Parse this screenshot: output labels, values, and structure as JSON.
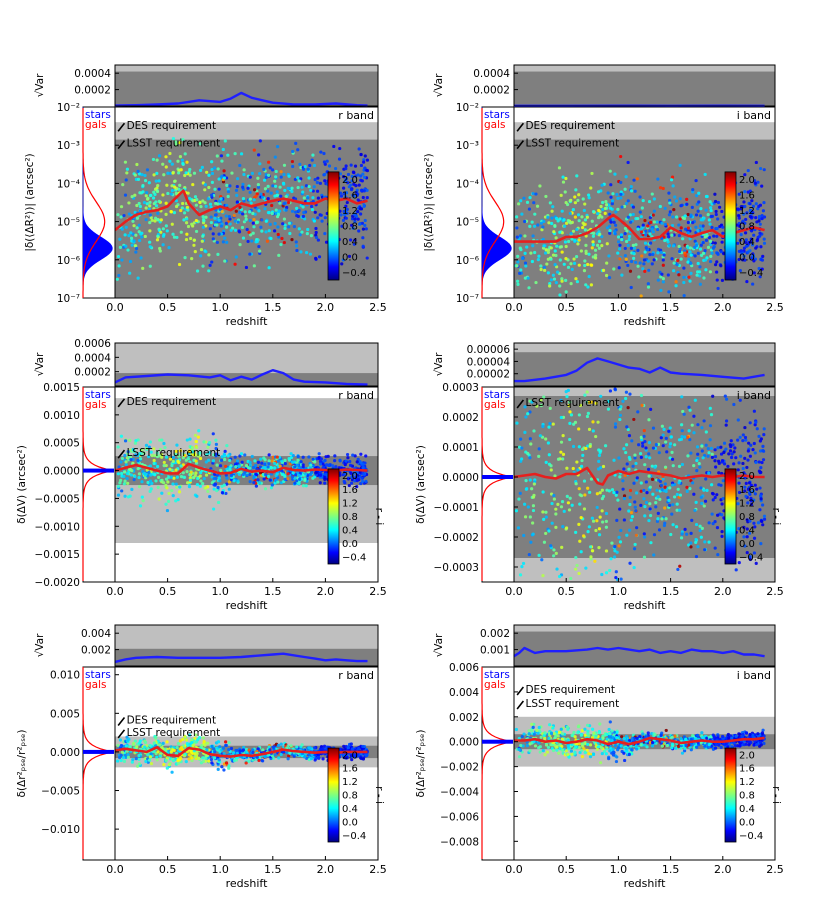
{
  "figure": {
    "xlabel": "redshift",
    "colorbar_label": "r - i",
    "colorbar_ticks": [
      "2.0",
      "1.6",
      "1.2",
      "0.8",
      "0.4",
      "0.0",
      "−0.4"
    ],
    "legend": [
      {
        "name": "stars",
        "color": "#0000ff"
      },
      {
        "name": "gals",
        "color": "#ff0000"
      }
    ],
    "colors": {
      "outer_band": "#bfbfbf",
      "inner_band": "#7f7f7f",
      "mean_line": "#e6201e",
      "var_line": "#1f1fff"
    },
    "top_ylabel": "√Var"
  },
  "chart_data": [
    {
      "id": "p1",
      "type": "scatter",
      "band_label": "r band",
      "scale": "log",
      "ylabel": "|δ(⟨ΔR²⟩)| (arcsec²)",
      "xlim": [
        -0.3,
        2.5
      ],
      "ylim": [
        1e-07,
        0.01
      ],
      "xticks": [
        "0.0",
        "0.5",
        "1.0",
        "1.5",
        "2.0",
        "2.5"
      ],
      "yticks": [
        {
          "v": 1e-07,
          "label": "10⁻⁷"
        },
        {
          "v": 1e-06,
          "label": "10⁻⁶"
        },
        {
          "v": 1e-05,
          "label": "10⁻⁵"
        },
        {
          "v": 0.0001,
          "label": "10⁻⁴"
        },
        {
          "v": 0.001,
          "label": "10⁻³"
        },
        {
          "v": 0.01,
          "label": "10⁻²"
        }
      ],
      "requirements": [
        {
          "label": "DES requirement",
          "value": 0.004
        },
        {
          "label": "LSST requirement",
          "value": 0.0014
        }
      ],
      "mean_line": {
        "x": [
          0.0,
          0.1,
          0.2,
          0.3,
          0.4,
          0.5,
          0.55,
          0.65,
          0.7,
          0.8,
          0.9,
          1.0,
          1.1,
          1.2,
          1.3,
          1.4,
          1.5,
          1.6,
          1.7,
          1.8,
          1.9,
          2.0,
          2.1,
          2.2,
          2.3,
          2.4
        ],
        "y": [
          6e-06,
          1e-05,
          1.5e-05,
          1.8e-05,
          2e-05,
          2.5e-05,
          3.5e-05,
          6.5e-05,
          3e-05,
          1.5e-05,
          2e-05,
          2.5e-05,
          2e-05,
          3e-05,
          2.5e-05,
          3e-05,
          3.5e-05,
          4e-05,
          3.5e-05,
          3e-05,
          3e-05,
          4e-05,
          3.5e-05,
          4e-05,
          3e-05,
          3.5e-05
        ]
      },
      "top": {
        "ylim": [
          0,
          0.0005
        ],
        "yticks": [
          {
            "v": 0.0002,
            "label": "0.0002"
          },
          {
            "v": 0.0004,
            "label": "0.0004"
          }
        ],
        "bands": [
          0.00042,
          0.0005
        ],
        "line_x": [
          0.0,
          0.2,
          0.4,
          0.6,
          0.8,
          1.0,
          1.1,
          1.2,
          1.3,
          1.4,
          1.5,
          1.7,
          1.9,
          2.1,
          2.3,
          2.4
        ],
        "line_y": [
          5e-06,
          1e-05,
          2e-05,
          3e-05,
          7e-05,
          5e-05,
          9e-05,
          0.00016,
          0.0001,
          7e-05,
          4e-05,
          2e-05,
          2e-05,
          3e-05,
          1e-05,
          5e-06
        ]
      },
      "seed": 11
    },
    {
      "id": "p2",
      "type": "scatter",
      "band_label": "i band",
      "scale": "log",
      "ylabel": "|δ(⟨ΔR²⟩)| (arcsec²)",
      "xlim": [
        -0.3,
        2.5
      ],
      "ylim": [
        1e-07,
        0.01
      ],
      "xticks": [
        "0.0",
        "0.5",
        "1.0",
        "1.5",
        "2.0",
        "2.5"
      ],
      "yticks": [
        {
          "v": 1e-07,
          "label": "10⁻⁷"
        },
        {
          "v": 1e-06,
          "label": "10⁻⁶"
        },
        {
          "v": 1e-05,
          "label": "10⁻⁵"
        },
        {
          "v": 0.0001,
          "label": "10⁻⁴"
        },
        {
          "v": 0.001,
          "label": "10⁻³"
        },
        {
          "v": 0.01,
          "label": "10⁻²"
        }
      ],
      "requirements": [
        {
          "label": "DES requirement",
          "value": 0.004
        },
        {
          "label": "LSST requirement",
          "value": 0.0014
        }
      ],
      "mean_line": {
        "x": [
          0.0,
          0.1,
          0.2,
          0.3,
          0.4,
          0.5,
          0.6,
          0.7,
          0.8,
          0.9,
          0.95,
          1.0,
          1.1,
          1.2,
          1.3,
          1.4,
          1.5,
          1.6,
          1.7,
          1.8,
          1.9,
          2.0,
          2.1,
          2.2,
          2.3,
          2.4
        ],
        "y": [
          3e-06,
          3e-06,
          3e-06,
          3e-06,
          3e-06,
          4e-06,
          4e-06,
          5e-06,
          7e-06,
          1.2e-05,
          1.5e-05,
          1.2e-05,
          7e-06,
          3.5e-06,
          3.5e-06,
          4e-06,
          7e-06,
          5e-06,
          4e-06,
          5e-06,
          6e-06,
          4e-06,
          5e-06,
          6e-06,
          7e-06,
          6e-06
        ]
      },
      "top": {
        "ylim": [
          0,
          0.0005
        ],
        "yticks": [
          {
            "v": 0.0002,
            "label": "0.0002"
          },
          {
            "v": 0.0004,
            "label": "0.0004"
          }
        ],
        "bands": [
          0.00042,
          0.0005
        ],
        "line_x": [
          0.0,
          0.5,
          1.0,
          1.5,
          2.0,
          2.4
        ],
        "line_y": [
          3e-06,
          3e-06,
          4e-06,
          3e-06,
          4e-06,
          3e-06
        ]
      },
      "seed": 23
    },
    {
      "id": "p3",
      "type": "scatter",
      "band_label": "r band",
      "scale": "linear",
      "ylabel": "δ(ΔV) (arcsec²)",
      "xlim": [
        -0.3,
        2.5
      ],
      "ylim": [
        -0.002,
        0.0015
      ],
      "xticks": [
        "0.0",
        "0.5",
        "1.0",
        "1.5",
        "2.0",
        "2.5"
      ],
      "yticks": [
        {
          "v": -0.002,
          "label": "−0.0020"
        },
        {
          "v": -0.0015,
          "label": "−0.0015"
        },
        {
          "v": -0.001,
          "label": "−0.0010"
        },
        {
          "v": -0.0005,
          "label": "−0.0005"
        },
        {
          "v": 0,
          "label": "0.0000"
        },
        {
          "v": 0.0005,
          "label": "0.0005"
        },
        {
          "v": 0.001,
          "label": "0.0010"
        },
        {
          "v": 0.0015,
          "label": "0.0015"
        }
      ],
      "requirements": [
        {
          "label": "DES requirement",
          "value": 0.0013
        },
        {
          "label": "LSST requirement",
          "value": 0.00026
        }
      ],
      "mean_line": {
        "x": [
          0.0,
          0.1,
          0.2,
          0.3,
          0.4,
          0.5,
          0.6,
          0.7,
          0.8,
          0.9,
          1.0,
          1.1,
          1.2,
          1.3,
          1.4,
          1.5,
          1.6,
          1.7,
          1.8,
          1.9,
          2.0,
          2.1,
          2.2,
          2.3,
          2.4
        ],
        "y": [
          0,
          5e-05,
          0.0001,
          5e-05,
          0,
          -5e-05,
          -5e-05,
          0.00012,
          5e-05,
          0,
          -5e-05,
          -4e-05,
          3e-05,
          -2e-05,
          0,
          -3e-05,
          5e-05,
          1e-05,
          0,
          2e-05,
          1e-05,
          0,
          2e-05,
          1e-05,
          0
        ]
      },
      "top": {
        "ylim": [
          0,
          0.0006
        ],
        "yticks": [
          {
            "v": 0.0002,
            "label": "0.0002"
          },
          {
            "v": 0.0004,
            "label": "0.0004"
          },
          {
            "v": 0.0006,
            "label": "0.0006"
          }
        ],
        "bands": [
          0.00018,
          0.0006
        ],
        "line_x": [
          0.0,
          0.1,
          0.3,
          0.5,
          0.7,
          0.9,
          1.0,
          1.1,
          1.2,
          1.3,
          1.4,
          1.5,
          1.6,
          1.7,
          1.8,
          2.0,
          2.2,
          2.4
        ],
        "line_y": [
          5e-05,
          0.00012,
          0.00014,
          0.00016,
          0.00015,
          0.00012,
          0.00015,
          8e-05,
          0.00013,
          9e-05,
          0.00016,
          0.00022,
          0.00018,
          9e-05,
          6e-05,
          5e-05,
          3e-05,
          2e-05
        ]
      },
      "seed": 37
    },
    {
      "id": "p4",
      "type": "scatter",
      "band_label": "i band",
      "scale": "linear",
      "ylabel": "δ(ΔV) (arcsec²)",
      "xlim": [
        -0.3,
        2.5
      ],
      "ylim": [
        -0.00035,
        0.0003
      ],
      "xticks": [
        "0.0",
        "0.5",
        "1.0",
        "1.5",
        "2.0",
        "2.5"
      ],
      "yticks": [
        {
          "v": -0.0003,
          "label": "−0.0003"
        },
        {
          "v": -0.0002,
          "label": "−0.0002"
        },
        {
          "v": -0.0001,
          "label": "−0.0001"
        },
        {
          "v": 0,
          "label": "0.0000"
        },
        {
          "v": 0.0001,
          "label": "0.0001"
        },
        {
          "v": 0.0002,
          "label": "0.0002"
        },
        {
          "v": 0.0003,
          "label": "0.0003"
        }
      ],
      "requirements": [
        {
          "label": "LSST requirement",
          "value": 0.00027
        }
      ],
      "mean_line": {
        "x": [
          0.0,
          0.1,
          0.2,
          0.3,
          0.4,
          0.5,
          0.6,
          0.7,
          0.8,
          0.85,
          0.9,
          1.0,
          1.1,
          1.2,
          1.3,
          1.4,
          1.5,
          1.6,
          1.7,
          1.8,
          1.9,
          2.0,
          2.1,
          2.2,
          2.3,
          2.4
        ],
        "y": [
          0,
          5e-06,
          1e-05,
          0,
          -5e-06,
          1e-05,
          1e-05,
          3e-05,
          -2e-05,
          -2.5e-05,
          5e-06,
          2e-05,
          1e-05,
          2e-05,
          1.5e-05,
          1e-05,
          5e-06,
          -5e-06,
          0,
          5e-06,
          0,
          5e-06,
          0,
          5e-06,
          0,
          0
        ]
      },
      "top": {
        "ylim": [
          0,
          7e-05
        ],
        "yticks": [
          {
            "v": 2e-05,
            "label": "0.00002"
          },
          {
            "v": 4e-05,
            "label": "0.00004"
          },
          {
            "v": 6e-05,
            "label": "0.00006"
          }
        ],
        "bands": [
          5.5e-05,
          7e-05
        ],
        "line_x": [
          0.0,
          0.1,
          0.3,
          0.5,
          0.6,
          0.7,
          0.8,
          0.9,
          1.0,
          1.1,
          1.2,
          1.3,
          1.4,
          1.5,
          1.6,
          1.8,
          2.0,
          2.2,
          2.4
        ],
        "line_y": [
          8e-06,
          8e-06,
          1.2e-05,
          1.8e-05,
          2.5e-05,
          3.8e-05,
          4.5e-05,
          4e-05,
          3.5e-05,
          3e-05,
          2.8e-05,
          2.2e-05,
          3e-05,
          2.2e-05,
          2e-05,
          1.8e-05,
          1.5e-05,
          1.2e-05,
          1.8e-05
        ]
      },
      "seed": 53
    },
    {
      "id": "p5",
      "type": "scatter",
      "band_label": "r band",
      "scale": "linear",
      "ylabel": "δ(Δr²ₚₛₑ/r²ₚₛₑ)",
      "xlim": [
        -0.3,
        2.5
      ],
      "ylim": [
        -0.014,
        0.011
      ],
      "xticks": [
        "0.0",
        "0.5",
        "1.0",
        "1.5",
        "2.0",
        "2.5"
      ],
      "yticks": [
        {
          "v": -0.01,
          "label": "−0.010"
        },
        {
          "v": -0.005,
          "label": "−0.005"
        },
        {
          "v": 0,
          "label": "0.000"
        },
        {
          "v": 0.005,
          "label": "0.005"
        },
        {
          "v": 0.01,
          "label": "0.010"
        }
      ],
      "requirements": [
        {
          "label": "DES requirement",
          "value": 0.002
        },
        {
          "label": "LSST requirement",
          "value": 0.0008
        }
      ],
      "mean_line": {
        "x": [
          0.0,
          0.1,
          0.2,
          0.3,
          0.4,
          0.5,
          0.6,
          0.7,
          0.8,
          0.9,
          1.0,
          1.1,
          1.2,
          1.3,
          1.4,
          1.5,
          1.6,
          1.7,
          1.8,
          1.9,
          2.0,
          2.1,
          2.2,
          2.3,
          2.4
        ],
        "y": [
          0.0002,
          0.0004,
          0.0002,
          0,
          0.0006,
          -0.0004,
          -0.0005,
          0.0005,
          0.0003,
          -0.0003,
          -0.0005,
          -0.0006,
          -0.0004,
          -0.0005,
          -0.0003,
          0,
          0.0003,
          0.0001,
          0,
          -0.0001,
          0,
          -0.0001,
          0,
          0,
          0
        ]
      },
      "top": {
        "ylim": [
          0,
          0.005
        ],
        "yticks": [
          {
            "v": 0.002,
            "label": "0.002"
          },
          {
            "v": 0.004,
            "label": "0.004"
          }
        ],
        "bands": [
          0.0021,
          0.005
        ],
        "line_x": [
          0.0,
          0.1,
          0.2,
          0.4,
          0.6,
          0.8,
          1.0,
          1.2,
          1.4,
          1.5,
          1.6,
          1.8,
          1.9,
          2.0,
          2.1,
          2.2,
          2.3,
          2.4
        ],
        "line_y": [
          0.0005,
          0.0008,
          0.001,
          0.0011,
          0.001,
          0.001,
          0.001,
          0.0011,
          0.0013,
          0.0014,
          0.0015,
          0.0011,
          0.0009,
          0.0007,
          0.0008,
          0.0007,
          0.0006,
          0.0006
        ]
      },
      "seed": 71
    },
    {
      "id": "p6",
      "type": "scatter",
      "band_label": "i band",
      "scale": "linear",
      "ylabel": "δ(Δr²ₚₛₑ/r²ₚₛₑ)",
      "xlim": [
        -0.3,
        2.5
      ],
      "ylim": [
        -0.0095,
        0.006
      ],
      "xticks": [
        "0.0",
        "0.5",
        "1.0",
        "1.5",
        "2.0",
        "2.5"
      ],
      "yticks": [
        {
          "v": -0.008,
          "label": "−0.008"
        },
        {
          "v": -0.006,
          "label": "−0.006"
        },
        {
          "v": -0.004,
          "label": "−0.004"
        },
        {
          "v": -0.002,
          "label": "−0.002"
        },
        {
          "v": 0,
          "label": "0.000"
        },
        {
          "v": 0.002,
          "label": "0.002"
        },
        {
          "v": 0.004,
          "label": "0.004"
        },
        {
          "v": 0.006,
          "label": "0.006"
        }
      ],
      "requirements": [
        {
          "label": "DES requirement",
          "value": 0.002
        },
        {
          "label": "LSST requirement",
          "value": 0.0006
        }
      ],
      "mean_line": {
        "x": [
          0.0,
          0.1,
          0.2,
          0.3,
          0.4,
          0.5,
          0.6,
          0.7,
          0.8,
          0.9,
          1.0,
          1.1,
          1.2,
          1.3,
          1.4,
          1.5,
          1.6,
          1.7,
          1.8,
          1.9,
          2.0,
          2.1,
          2.2,
          2.3,
          2.4
        ],
        "y": [
          0.0001,
          0.0001,
          0.0002,
          0,
          0.0001,
          -0.0001,
          0,
          0.0002,
          0.0001,
          -0.0002,
          0,
          -0.0002,
          0,
          0.0003,
          0.0002,
          0.0001,
          -0.0001,
          0,
          0.0001,
          0,
          0,
          0.0001,
          0.0002,
          0.0002,
          0.0003
        ]
      },
      "top": {
        "ylim": [
          0,
          0.0025
        ],
        "yticks": [
          {
            "v": 0.001,
            "label": "0.001"
          },
          {
            "v": 0.002,
            "label": "0.002"
          }
        ],
        "bands": [
          0.0021,
          0.0025
        ],
        "line_x": [
          0.0,
          0.05,
          0.1,
          0.2,
          0.3,
          0.5,
          0.7,
          0.8,
          0.9,
          1.0,
          1.1,
          1.2,
          1.3,
          1.4,
          1.5,
          1.6,
          1.7,
          1.8,
          1.9,
          2.0,
          2.1,
          2.2,
          2.3,
          2.4
        ],
        "line_y": [
          0.0006,
          0.0008,
          0.0011,
          0.0008,
          0.0009,
          0.0009,
          0.001,
          0.0011,
          0.001,
          0.0011,
          0.001,
          0.0009,
          0.001,
          0.0008,
          0.0009,
          0.0008,
          0.001,
          0.0009,
          0.0009,
          0.0008,
          0.0009,
          0.0007,
          0.0007,
          0.0006
        ]
      },
      "seed": 97
    }
  ]
}
